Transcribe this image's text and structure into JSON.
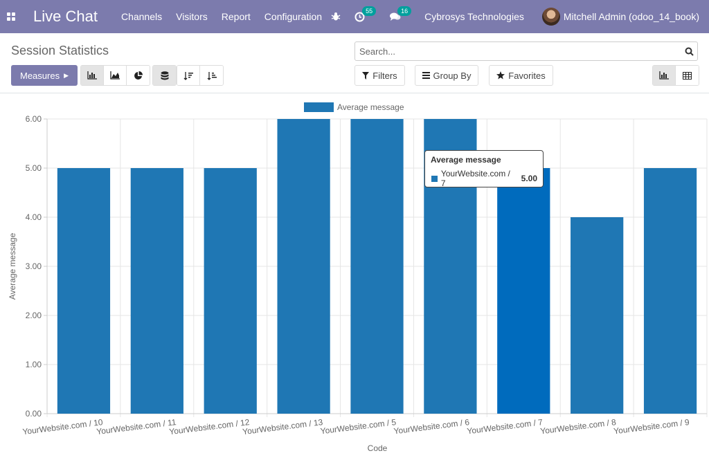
{
  "navbar": {
    "brand": "Live Chat",
    "menu": [
      "Channels",
      "Visitors",
      "Report",
      "Configuration"
    ],
    "activity_count": "55",
    "message_count": "16",
    "company": "Cybrosys Technologies",
    "user": "Mitchell Admin (odoo_14_book)"
  },
  "control": {
    "title": "Session Statistics",
    "search_placeholder": "Search...",
    "measures_label": "Measures",
    "filters_label": "Filters",
    "groupby_label": "Group By",
    "favorites_label": "Favorites"
  },
  "colors": {
    "bar": "#1f77b4",
    "bar_hover": "#006bbd",
    "navbar": "#7c7bad"
  },
  "chart_data": {
    "type": "bar",
    "legend": "Average message",
    "legend_position": "top-center",
    "xlabel": "Code",
    "ylabel": "Average message",
    "categories": [
      "YourWebsite.com / 10",
      "YourWebsite.com / 11",
      "YourWebsite.com / 12",
      "YourWebsite.com / 13",
      "YourWebsite.com / 5",
      "YourWebsite.com / 6",
      "YourWebsite.com / 7",
      "YourWebsite.com / 8",
      "YourWebsite.com / 9"
    ],
    "values": [
      5,
      5,
      5,
      6,
      6,
      6,
      5,
      4,
      5
    ],
    "ylim": [
      0,
      6
    ],
    "yticks": [
      "0.00",
      "1.00",
      "2.00",
      "3.00",
      "4.00",
      "5.00",
      "6.00"
    ],
    "grid": true,
    "hovered_index": 6
  },
  "tooltip": {
    "title": "Average message",
    "label": "YourWebsite.com / 7",
    "value": "5.00"
  }
}
